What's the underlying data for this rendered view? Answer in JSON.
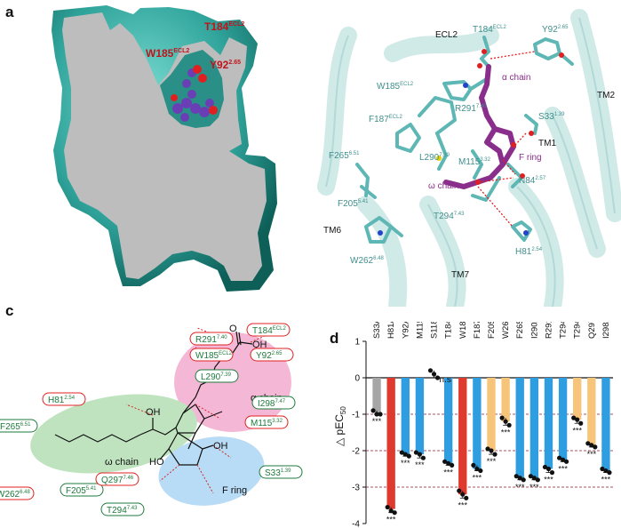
{
  "panels": {
    "a": {
      "letter": "a",
      "labels": [
        {
          "main": "T184",
          "sup": "ECL2"
        },
        {
          "main": "W185",
          "sup": "ECL2"
        },
        {
          "main": "Y92",
          "sup": "2.65"
        }
      ]
    },
    "b": {
      "letter": "b",
      "residue_labels": [
        {
          "main": "T184",
          "sup": "ECL2"
        },
        {
          "main": "Y92",
          "sup": "2.65"
        },
        {
          "main": "W185",
          "sup": "ECL2"
        },
        {
          "main": "R291",
          "sup": "7.40"
        },
        {
          "main": "F187",
          "sup": "ECL2"
        },
        {
          "main": "S33",
          "sup": "1.39"
        },
        {
          "main": "L290",
          "sup": "7.39"
        },
        {
          "main": "M115",
          "sup": "3.32"
        },
        {
          "main": "F265",
          "sup": "6.51"
        },
        {
          "main": "N84",
          "sup": "2.57"
        },
        {
          "main": "F205",
          "sup": "5.41"
        },
        {
          "main": "T294",
          "sup": "7.43"
        },
        {
          "main": "H81",
          "sup": "2.54"
        },
        {
          "main": "W262",
          "sup": "6.48"
        }
      ],
      "helix_labels": [
        "ECL2",
        "TM2",
        "TM1",
        "TM6",
        "TM7"
      ],
      "ligand_labels": [
        "α chain",
        "F ring",
        "ω chain"
      ]
    },
    "c": {
      "letter": "c",
      "region_labels": [
        "α chain",
        "ω chain",
        "F ring"
      ],
      "atom_labels": [
        "O",
        "OH",
        "OH",
        "HO",
        "OH"
      ],
      "residues": [
        {
          "main": "R291",
          "sup": "7.40"
        },
        {
          "main": "T184",
          "sup": "ECL2"
        },
        {
          "main": "W185",
          "sup": "ECL2"
        },
        {
          "main": "Y92",
          "sup": "2.65"
        },
        {
          "main": "L290",
          "sup": "7.39"
        },
        {
          "main": "H81",
          "sup": "2.54"
        },
        {
          "main": "I298",
          "sup": "7.47"
        },
        {
          "main": "M115",
          "sup": "3.32"
        },
        {
          "main": "F265",
          "sup": "6.51"
        },
        {
          "main": "W262",
          "sup": "6.48"
        },
        {
          "main": "F205",
          "sup": "5.41"
        },
        {
          "main": "Q297",
          "sup": "7.46"
        },
        {
          "main": "S33",
          "sup": "1.39"
        },
        {
          "main": "T294",
          "sup": "7.43"
        }
      ]
    },
    "d": {
      "letter": "d",
      "ylabel_delta": "△ pEC",
      "ylabel_sub": "50",
      "ns_label": "n.s",
      "sig_label": "***"
    }
  },
  "colors": {
    "surface": "#2fa39a",
    "cartoon": "#b3dedb",
    "stick": "#5eb7b5",
    "ligand": "#8a2e8c",
    "residue_text": "#1e7a3c",
    "residue_box_red": "#e02020",
    "bar_gray": "#a6a6a6",
    "bar_red": "#e03a2f",
    "bar_blue": "#2f9ee0",
    "bar_orange": "#f7c57a",
    "ellipse_pink": "#f4b8d6",
    "ellipse_green": "#bfe3bf",
    "ellipse_blue": "#b8dcf5"
  },
  "chart_data": {
    "type": "bar",
    "categories": [
      "S33A",
      "H81A",
      "Y92A",
      "M115A",
      "S118A",
      "T184A",
      "W185A",
      "F187A",
      "F205A",
      "W262A",
      "F265A",
      "I290A",
      "R291A",
      "T294A",
      "T294S",
      "Q297A",
      "I298A"
    ],
    "values": [
      -0.95,
      -3.6,
      -2.1,
      -2.1,
      0.1,
      -2.35,
      -3.2,
      -2.5,
      -2.0,
      -1.2,
      -2.75,
      -2.75,
      -2.5,
      -2.25,
      -1.15,
      -1.85,
      -2.55
    ],
    "bar_colors": [
      "gray",
      "red",
      "blue",
      "blue",
      "blue",
      "blue",
      "red",
      "blue",
      "orange",
      "orange",
      "blue",
      "blue",
      "blue",
      "blue",
      "orange",
      "orange",
      "blue"
    ],
    "points": [
      [
        -0.9,
        -1.0,
        -1.0
      ],
      [
        -3.55,
        -3.65,
        -3.7
      ],
      [
        -2.05,
        -2.1,
        -2.15
      ],
      [
        -2.05,
        -2.1,
        -2.2
      ],
      [
        0.2,
        0.1,
        0.0
      ],
      [
        -2.3,
        -2.35,
        -2.4
      ],
      [
        -3.1,
        -3.2,
        -3.3
      ],
      [
        -2.4,
        -2.5,
        -2.55
      ],
      [
        -1.95,
        -2.0,
        -2.1
      ],
      [
        -1.1,
        -1.2,
        -1.3
      ],
      [
        -2.7,
        -2.75,
        -2.8
      ],
      [
        -2.7,
        -2.75,
        -2.8
      ],
      [
        -2.45,
        -2.5,
        -2.6
      ],
      [
        -2.2,
        -2.25,
        -2.3
      ],
      [
        -1.1,
        -1.15,
        -1.25
      ],
      [
        -1.8,
        -1.85,
        -1.9
      ],
      [
        -2.5,
        -2.55,
        -2.6
      ]
    ],
    "significance": [
      "***",
      "***",
      "***",
      "***",
      "n.s",
      "***",
      "***",
      "***",
      "***",
      "***",
      "***",
      "***",
      "***",
      "***",
      "***",
      "***",
      "***"
    ],
    "ylim": [
      -4,
      1
    ],
    "yticks": [
      1,
      0,
      -1,
      -2,
      -3,
      -4
    ],
    "reference_lines": [
      -1,
      -2,
      -3
    ],
    "grid": false,
    "legend": "none"
  }
}
